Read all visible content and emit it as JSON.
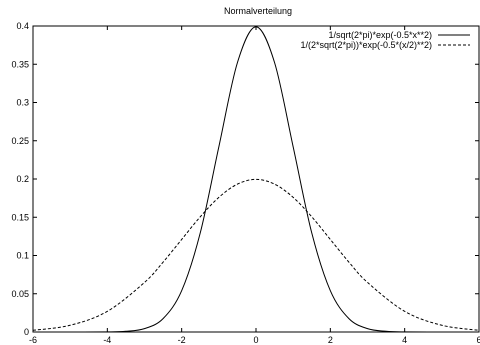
{
  "chart_data": {
    "type": "line",
    "title": "Normalverteilung",
    "xlabel": "",
    "ylabel": "",
    "xlim": [
      -6,
      6
    ],
    "ylim": [
      0,
      0.4
    ],
    "x_ticks": [
      "-6",
      "-4",
      "-2",
      "0",
      "2",
      "4",
      "6"
    ],
    "y_ticks": [
      "0",
      "0.05",
      "0.1",
      "0.15",
      "0.2",
      "0.25",
      "0.3",
      "0.35",
      "0.4"
    ],
    "grid": false,
    "legend_position": "top-right",
    "series": [
      {
        "name": "1/sqrt(2*pi)*exp(-0.5*x**2)",
        "style": "solid",
        "color": "#000000",
        "x": [
          -6,
          -5,
          -4,
          -3.5,
          -3,
          -2.5,
          -2,
          -1.5,
          -1,
          -0.5,
          0,
          0.5,
          1,
          1.5,
          2,
          2.5,
          3,
          3.5,
          4,
          5,
          6
        ],
        "y": [
          0.0,
          0.0,
          0.0001,
          0.0009,
          0.0044,
          0.0175,
          0.054,
          0.1295,
          0.242,
          0.3521,
          0.3989,
          0.3521,
          0.242,
          0.1295,
          0.054,
          0.0175,
          0.0044,
          0.0009,
          0.0001,
          0.0,
          0.0
        ]
      },
      {
        "name": "1/(2*sqrt(2*pi))*exp(-0.5*(x/2)**2)",
        "style": "dashed",
        "color": "#000000",
        "x": [
          -6,
          -5,
          -4,
          -3,
          -2.5,
          -2,
          -1.5,
          -1,
          -0.5,
          0,
          0.5,
          1,
          1.5,
          2,
          2.5,
          3,
          4,
          5,
          6
        ],
        "y": [
          0.0022,
          0.0088,
          0.027,
          0.0648,
          0.0913,
          0.121,
          0.1506,
          0.176,
          0.1933,
          0.1995,
          0.1933,
          0.176,
          0.1506,
          0.121,
          0.0913,
          0.0648,
          0.027,
          0.0088,
          0.0022
        ]
      }
    ]
  }
}
